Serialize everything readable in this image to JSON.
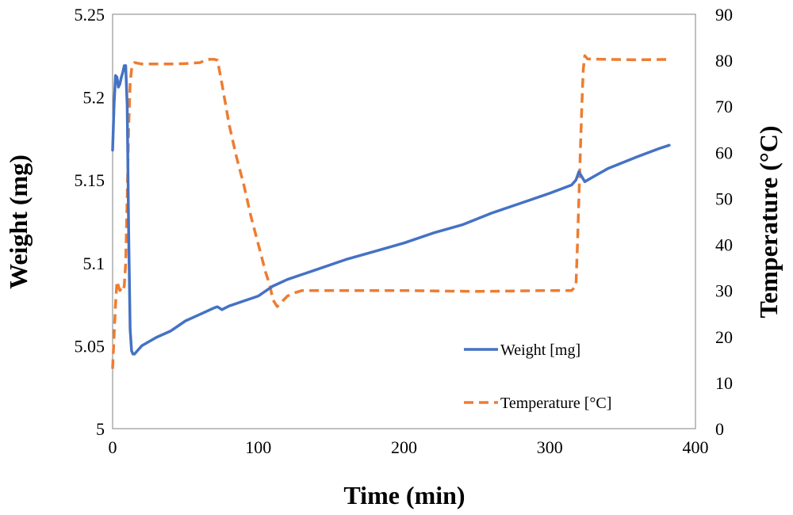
{
  "chart_data": {
    "type": "line",
    "title": "",
    "xlabel": "Time (min)",
    "ylabel_left": "Weight (mg)",
    "ylabel_right": "Temperature (°C)",
    "xlim": [
      0,
      400
    ],
    "ylim_left": [
      5,
      5.25
    ],
    "ylim_right": [
      0,
      90
    ],
    "x_ticks": [
      "0",
      "100",
      "200",
      "300",
      "400"
    ],
    "y_left_ticks": [
      "5",
      "5.05",
      "5.1",
      "5.15",
      "5.2",
      "5.25"
    ],
    "y_right_ticks": [
      "0",
      "10",
      "20",
      "30",
      "40",
      "50",
      "60",
      "70",
      "80",
      "90"
    ],
    "grid": false,
    "legend_position": "bottom-right",
    "series": [
      {
        "name": "Weight [mg]",
        "axis": "left",
        "color": "#4472C4",
        "style": "solid",
        "points": [
          [
            0,
            5.168
          ],
          [
            1,
            5.195
          ],
          [
            2,
            5.213
          ],
          [
            3,
            5.212
          ],
          [
            4,
            5.206
          ],
          [
            5,
            5.208
          ],
          [
            6,
            5.212
          ],
          [
            7,
            5.215
          ],
          [
            8,
            5.219
          ],
          [
            9,
            5.219
          ],
          [
            10,
            5.195
          ],
          [
            11,
            5.12
          ],
          [
            12,
            5.06
          ],
          [
            13,
            5.047
          ],
          [
            14,
            5.045
          ],
          [
            15,
            5.045
          ],
          [
            20,
            5.05
          ],
          [
            30,
            5.055
          ],
          [
            40,
            5.059
          ],
          [
            50,
            5.065
          ],
          [
            60,
            5.069
          ],
          [
            70,
            5.073
          ],
          [
            72,
            5.0735
          ],
          [
            75,
            5.0718
          ],
          [
            80,
            5.074
          ],
          [
            90,
            5.077
          ],
          [
            100,
            5.08
          ],
          [
            110,
            5.086
          ],
          [
            120,
            5.09
          ],
          [
            140,
            5.096
          ],
          [
            160,
            5.102
          ],
          [
            180,
            5.107
          ],
          [
            200,
            5.112
          ],
          [
            220,
            5.118
          ],
          [
            240,
            5.123
          ],
          [
            260,
            5.13
          ],
          [
            280,
            5.136
          ],
          [
            300,
            5.142
          ],
          [
            315,
            5.147
          ],
          [
            318,
            5.15
          ],
          [
            320,
            5.155
          ],
          [
            322,
            5.152
          ],
          [
            324,
            5.149
          ],
          [
            330,
            5.152
          ],
          [
            340,
            5.157
          ],
          [
            360,
            5.164
          ],
          [
            375,
            5.169
          ],
          [
            382,
            5.171
          ]
        ]
      },
      {
        "name": "Temperature [°C]",
        "axis": "right",
        "color": "#ED7D31",
        "style": "dashed",
        "points": [
          [
            0,
            13
          ],
          [
            1,
            20
          ],
          [
            2,
            27
          ],
          [
            3,
            32
          ],
          [
            4,
            31
          ],
          [
            5,
            30
          ],
          [
            6,
            30.5
          ],
          [
            7,
            30
          ],
          [
            8,
            31
          ],
          [
            9,
            36
          ],
          [
            10,
            50
          ],
          [
            11,
            65
          ],
          [
            12,
            75
          ],
          [
            13,
            78
          ],
          [
            14,
            79
          ],
          [
            15,
            79.5
          ],
          [
            20,
            79.2
          ],
          [
            30,
            79.2
          ],
          [
            40,
            79.2
          ],
          [
            50,
            79.3
          ],
          [
            60,
            79.5
          ],
          [
            65,
            80.2
          ],
          [
            70,
            80.2
          ],
          [
            72,
            80
          ],
          [
            75,
            75
          ],
          [
            80,
            66
          ],
          [
            85,
            59
          ],
          [
            90,
            53
          ],
          [
            95,
            46
          ],
          [
            100,
            40
          ],
          [
            105,
            34
          ],
          [
            108,
            31
          ],
          [
            110,
            28
          ],
          [
            113,
            26.5
          ],
          [
            116,
            27.5
          ],
          [
            120,
            28.8
          ],
          [
            125,
            29.5
          ],
          [
            130,
            30
          ],
          [
            150,
            30
          ],
          [
            170,
            30
          ],
          [
            200,
            30
          ],
          [
            250,
            29.8
          ],
          [
            300,
            30
          ],
          [
            315,
            30
          ],
          [
            318,
            31
          ],
          [
            319,
            40
          ],
          [
            320,
            50
          ],
          [
            321,
            60
          ],
          [
            322,
            70
          ],
          [
            323,
            78
          ],
          [
            324,
            81
          ],
          [
            326,
            80.3
          ],
          [
            340,
            80.2
          ],
          [
            360,
            80.1
          ],
          [
            382,
            80.2
          ]
        ]
      }
    ]
  }
}
